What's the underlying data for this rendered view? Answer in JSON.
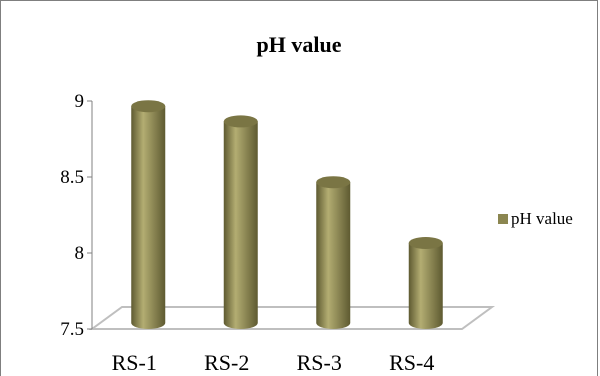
{
  "chart_data": {
    "type": "bar",
    "style": "3d-cylinder",
    "title": "pH value",
    "xlabel": "",
    "ylabel": "",
    "categories": [
      "RS-1",
      "RS-2",
      "RS-3",
      "RS-4"
    ],
    "series": [
      {
        "name": "pH value",
        "values": [
          8.9,
          8.8,
          8.4,
          8.0
        ]
      }
    ],
    "ylim": [
      7.5,
      9
    ],
    "yticks": [
      "7.5",
      "8",
      "8.5",
      "9"
    ],
    "grid": false,
    "legend_position": "right",
    "colors": {
      "bar_body": "#8b8650",
      "bar_light": "#b3ad72",
      "bar_dark": "#5e5a31",
      "bar_top": "#7a7544",
      "floor": "#bfbfbf",
      "axis": "#808080"
    }
  }
}
